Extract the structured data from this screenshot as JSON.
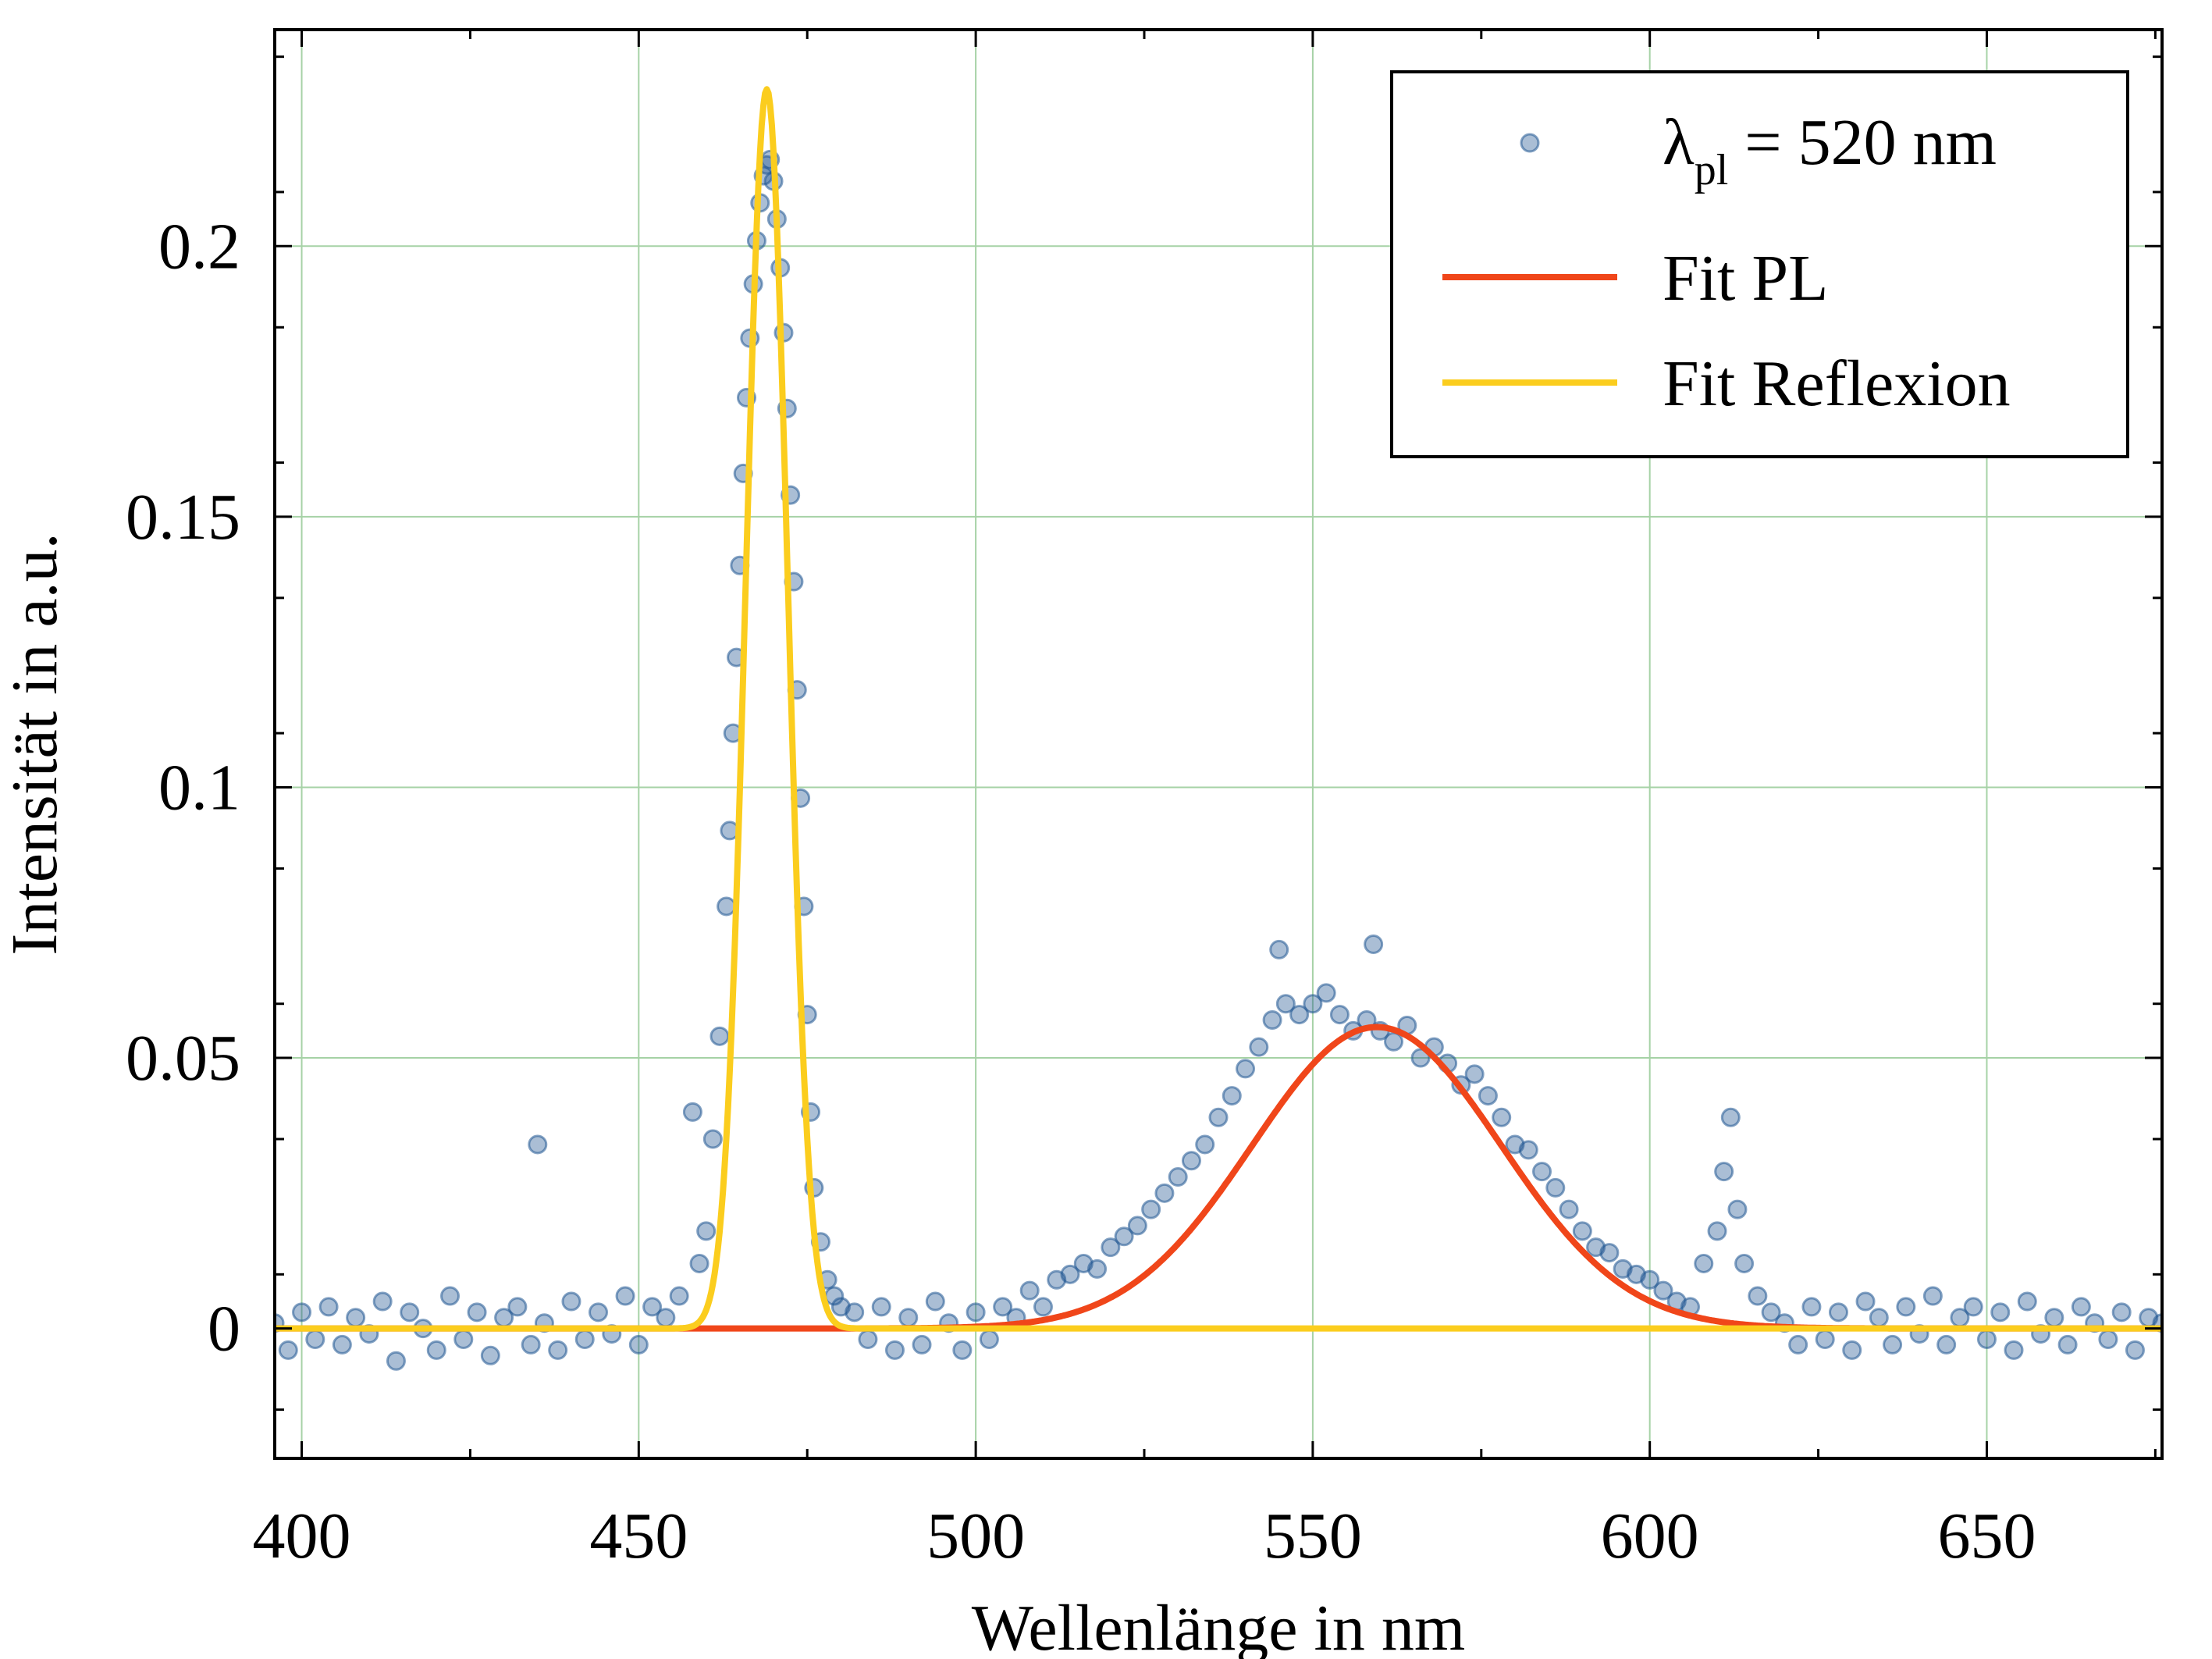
{
  "chart_data": {
    "type": "scatter",
    "xlabel": "Wellenlänge in nm",
    "ylabel": "Intensität in a.u.",
    "xlim": [
      396,
      676
    ],
    "ylim": [
      -0.024,
      0.24
    ],
    "x_ticks": [
      400,
      450,
      500,
      550,
      600,
      650
    ],
    "x_tick_labels": [
      "400",
      "450",
      "500",
      "550",
      "600",
      "650"
    ],
    "y_ticks": [
      0,
      0.05,
      0.1,
      0.15,
      0.2
    ],
    "y_tick_labels": [
      "0",
      "0.05",
      "0.1",
      "0.15",
      "0.2"
    ],
    "grid": true,
    "legend_position": "top-right",
    "legend": [
      {
        "main": "λ",
        "sub": "pl",
        "rest": " = 520 nm",
        "kind": "marker"
      },
      {
        "text": "Fit PL",
        "kind": "line"
      },
      {
        "text": "Fit Reflexion",
        "kind": "line"
      }
    ],
    "colors": {
      "measured": "#1f5591",
      "fit_pl": "#f0461a",
      "fit_reflexion": "#fbcd1e",
      "grid": "#a6d2a6"
    },
    "series": [
      {
        "kind": "points",
        "x": [
          396,
          398,
          400,
          402,
          404,
          406,
          408,
          410,
          412,
          414,
          416,
          418,
          420,
          422,
          424,
          426,
          428,
          430,
          432,
          434,
          435,
          436,
          438,
          440,
          442,
          444,
          446,
          448,
          450,
          452,
          454,
          456,
          458,
          459,
          460,
          461,
          462,
          463,
          463.5,
          464,
          464.5,
          465,
          465.5,
          466,
          466.5,
          467,
          467.5,
          468,
          468.5,
          469,
          469.5,
          470,
          470.5,
          471,
          471.5,
          472,
          472.5,
          473,
          473.5,
          474,
          474.5,
          475,
          475.5,
          476,
          477,
          478,
          479,
          480,
          482,
          484,
          486,
          488,
          490,
          492,
          494,
          496,
          498,
          500,
          502,
          504,
          506,
          508,
          510,
          512,
          514,
          516,
          518,
          520,
          522,
          524,
          526,
          528,
          530,
          532,
          534,
          536,
          538,
          540,
          542,
          544,
          545,
          546,
          548,
          550,
          552,
          554,
          556,
          558,
          559,
          560,
          562,
          564,
          566,
          568,
          570,
          572,
          574,
          576,
          578,
          580,
          582,
          584,
          586,
          588,
          590,
          592,
          594,
          596,
          598,
          600,
          602,
          604,
          606,
          608,
          610,
          611,
          612,
          613,
          614,
          616,
          618,
          620,
          622,
          624,
          626,
          628,
          630,
          632,
          634,
          636,
          638,
          640,
          642,
          644,
          646,
          648,
          650,
          652,
          654,
          656,
          658,
          660,
          662,
          664,
          666,
          668,
          670,
          672,
          674,
          676
        ],
        "y": [
          0.001,
          -0.004,
          0.003,
          -0.002,
          0.004,
          -0.003,
          0.002,
          -0.001,
          0.005,
          -0.006,
          0.003,
          0.0,
          -0.004,
          0.006,
          -0.002,
          0.003,
          -0.005,
          0.002,
          0.004,
          -0.003,
          0.034,
          0.001,
          -0.004,
          0.005,
          -0.002,
          0.003,
          -0.001,
          0.006,
          -0.003,
          0.004,
          0.002,
          0.006,
          0.04,
          0.012,
          0.018,
          0.035,
          0.054,
          0.078,
          0.092,
          0.11,
          0.124,
          0.141,
          0.158,
          0.172,
          0.183,
          0.193,
          0.201,
          0.208,
          0.213,
          0.215,
          0.216,
          0.212,
          0.205,
          0.196,
          0.184,
          0.17,
          0.154,
          0.138,
          0.118,
          0.098,
          0.078,
          0.058,
          0.04,
          0.026,
          0.016,
          0.009,
          0.006,
          0.004,
          0.003,
          -0.002,
          0.004,
          -0.004,
          0.002,
          -0.003,
          0.005,
          0.001,
          -0.004,
          0.003,
          -0.002,
          0.004,
          0.002,
          0.007,
          0.004,
          0.009,
          0.01,
          0.012,
          0.011,
          0.015,
          0.017,
          0.019,
          0.022,
          0.025,
          0.028,
          0.031,
          0.034,
          0.039,
          0.043,
          0.048,
          0.052,
          0.057,
          0.07,
          0.06,
          0.058,
          0.06,
          0.062,
          0.058,
          0.055,
          0.057,
          0.071,
          0.055,
          0.053,
          0.056,
          0.05,
          0.052,
          0.049,
          0.045,
          0.047,
          0.043,
          0.039,
          0.034,
          0.033,
          0.029,
          0.026,
          0.022,
          0.018,
          0.015,
          0.014,
          0.011,
          0.01,
          0.009,
          0.007,
          0.005,
          0.004,
          0.012,
          0.018,
          0.029,
          0.039,
          0.022,
          0.012,
          0.006,
          0.003,
          0.001,
          -0.003,
          0.004,
          -0.002,
          0.003,
          -0.004,
          0.005,
          0.002,
          -0.003,
          0.004,
          -0.001,
          0.006,
          -0.003,
          0.002,
          0.004,
          -0.002,
          0.003,
          -0.004,
          0.005,
          -0.001,
          0.002,
          -0.003,
          0.004,
          0.001,
          -0.002,
          0.003,
          -0.004,
          0.002,
          0.001
        ]
      },
      {
        "name": "Fit PL",
        "kind": "gaussian",
        "amplitude": 0.0557,
        "center": 559.5,
        "sigma": 18.5
      },
      {
        "name": "Fit Reflexion",
        "kind": "gaussian",
        "amplitude": 0.229,
        "center": 469.0,
        "sigma": 3.1
      }
    ]
  }
}
